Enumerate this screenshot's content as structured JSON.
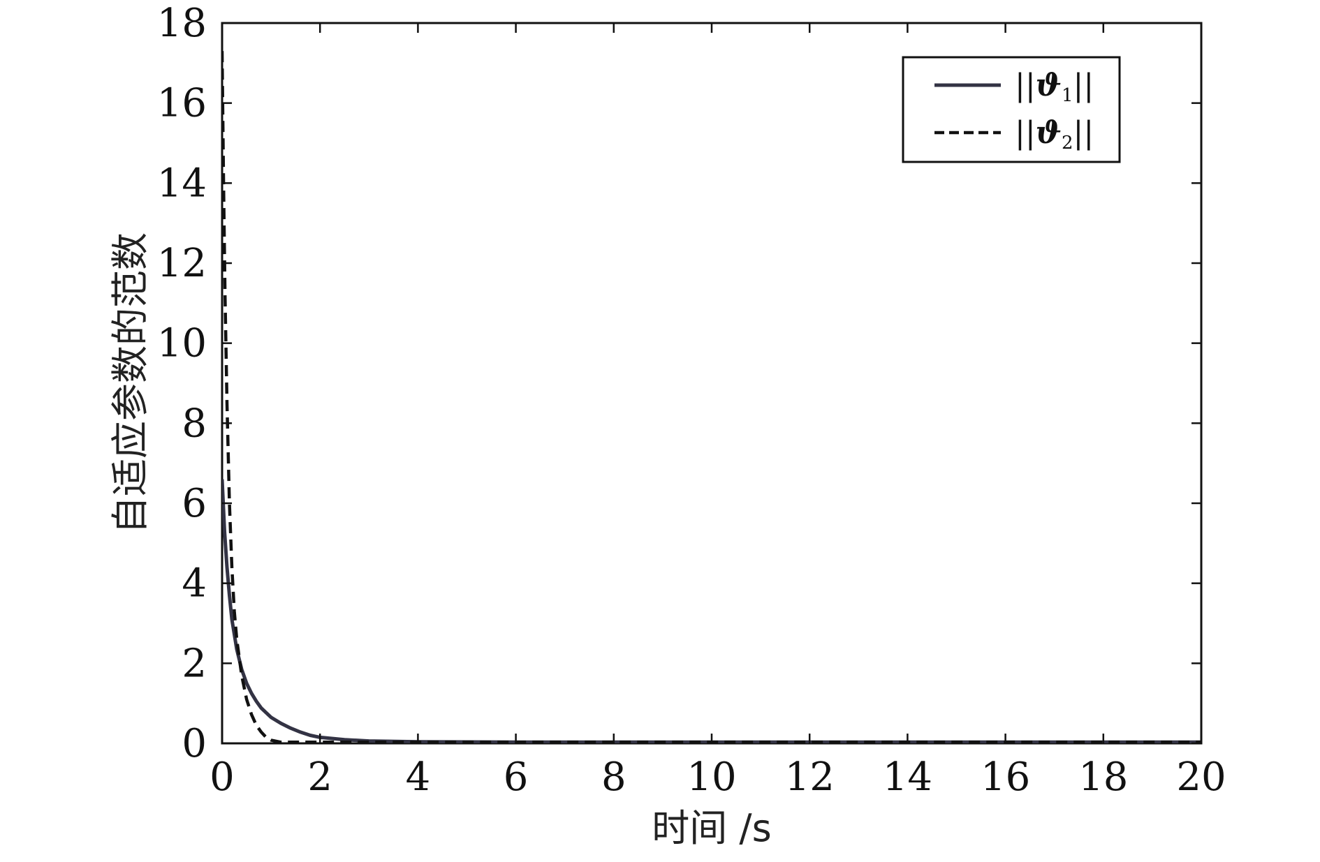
{
  "chart_data": {
    "type": "line",
    "title": "",
    "xlabel": "时间 /s",
    "ylabel": "自适应参数的范数",
    "xlim": [
      0,
      20
    ],
    "ylim": [
      0,
      18
    ],
    "xticks": [
      0,
      2,
      4,
      6,
      8,
      10,
      12,
      14,
      16,
      18,
      20
    ],
    "yticks": [
      0,
      2,
      4,
      6,
      8,
      10,
      12,
      14,
      16,
      18
    ],
    "grid": false,
    "legend_position": "top-right",
    "series": [
      {
        "name": "||ϑ1||",
        "legend_main": "ϑ",
        "legend_sub": "1",
        "style": "solid",
        "color": "#333344",
        "x": [
          0,
          0.05,
          0.1,
          0.15,
          0.2,
          0.3,
          0.4,
          0.5,
          0.6,
          0.7,
          0.8,
          1.0,
          1.2,
          1.4,
          1.6,
          1.8,
          2.0,
          2.5,
          3.0,
          4.0,
          6.0,
          10.0,
          15.0,
          20.0
        ],
        "y": [
          6.6,
          5.3,
          4.4,
          3.7,
          3.1,
          2.35,
          1.85,
          1.5,
          1.25,
          1.05,
          0.88,
          0.65,
          0.5,
          0.38,
          0.28,
          0.2,
          0.15,
          0.09,
          0.06,
          0.04,
          0.03,
          0.03,
          0.03,
          0.03
        ]
      },
      {
        "name": "||ϑ2||",
        "legend_main": "ϑ",
        "legend_sub": "2",
        "style": "dashed",
        "color": "#111111",
        "x": [
          0,
          0.03,
          0.06,
          0.1,
          0.15,
          0.2,
          0.25,
          0.3,
          0.4,
          0.5,
          0.6,
          0.7,
          0.8,
          0.9,
          1.0,
          1.2,
          1.5,
          2.0,
          3.0,
          5.0,
          10.0,
          15.0,
          20.0
        ],
        "y": [
          17.3,
          14.0,
          11.2,
          8.5,
          6.0,
          4.4,
          3.3,
          2.6,
          1.7,
          1.1,
          0.72,
          0.45,
          0.28,
          0.15,
          0.08,
          0.03,
          0.03,
          0.03,
          0.03,
          0.03,
          0.03,
          0.03,
          0.03
        ]
      }
    ]
  }
}
